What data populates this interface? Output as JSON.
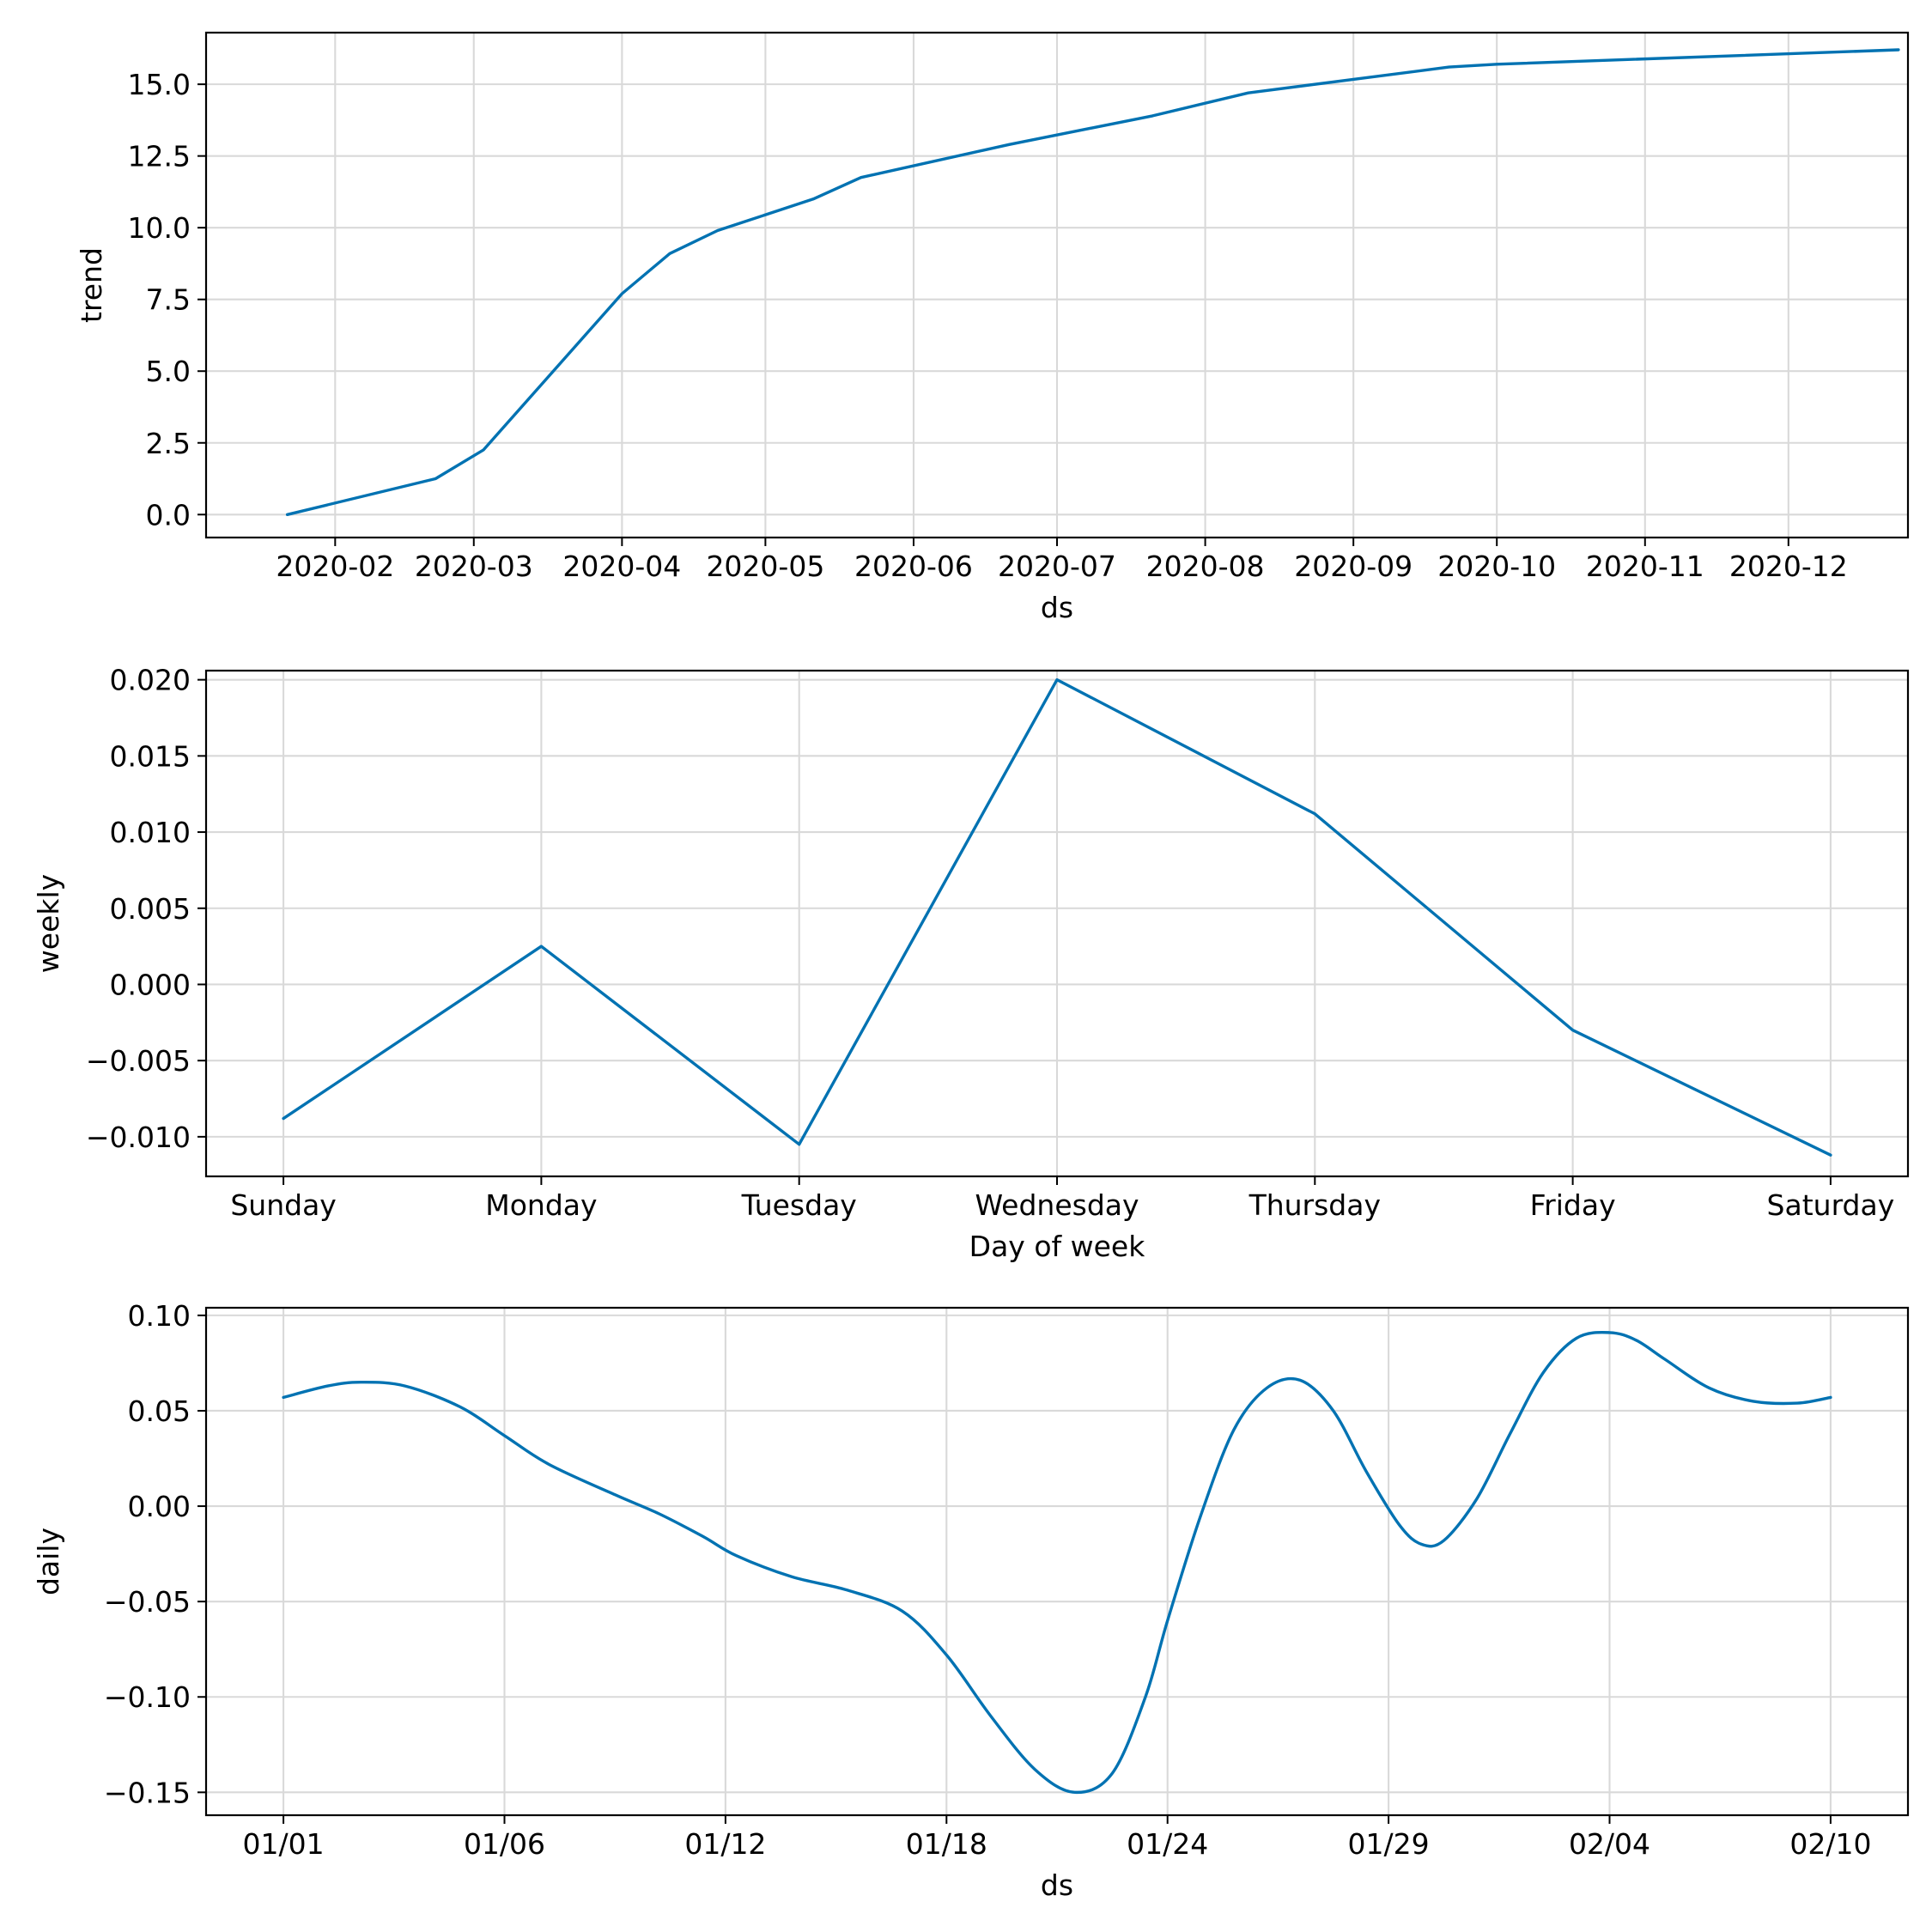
{
  "colors": {
    "series": "#0072b2",
    "grid": "#d9d9d9",
    "axis": "#000000"
  },
  "chart_data": [
    {
      "type": "line",
      "name": "trend",
      "xlabel": "ds",
      "ylabel": "trend",
      "x_type": "date",
      "xlim": [
        "2020-01-05",
        "2020-12-26"
      ],
      "ylim": [
        -0.8,
        16.8
      ],
      "x_ticks": [
        "2020-02-01",
        "2020-03-01",
        "2020-04-01",
        "2020-05-01",
        "2020-06-01",
        "2020-07-01",
        "2020-08-01",
        "2020-09-01",
        "2020-10-01",
        "2020-11-01",
        "2020-12-01"
      ],
      "x_tick_labels": [
        "2020-02",
        "2020-03",
        "2020-04",
        "2020-05",
        "2020-06",
        "2020-07",
        "2020-08",
        "2020-09",
        "2020-10",
        "2020-11",
        "2020-12"
      ],
      "y_ticks": [
        0,
        2.5,
        5,
        7.5,
        10,
        12.5,
        15
      ],
      "y_tick_labels": [
        "0.0",
        "2.5",
        "5.0",
        "7.5",
        "10.0",
        "12.5",
        "15.0"
      ],
      "grid": true,
      "series": [
        {
          "x": [
            "2020-01-22",
            "2020-02-22",
            "2020-03-03",
            "2020-04-01",
            "2020-04-11",
            "2020-04-21",
            "2020-05-11",
            "2020-05-21",
            "2020-06-21",
            "2020-07-21",
            "2020-08-10",
            "2020-09-21",
            "2020-10-01",
            "2020-12-24"
          ],
          "y": [
            0.0,
            1.25,
            2.25,
            7.7,
            9.1,
            9.9,
            11.0,
            11.75,
            12.9,
            13.9,
            14.7,
            15.6,
            15.7,
            16.2
          ]
        }
      ]
    },
    {
      "type": "line",
      "name": "weekly",
      "xlabel": "Day of week",
      "ylabel": "weekly",
      "categories": [
        "Sunday",
        "Monday",
        "Tuesday",
        "Wednesday",
        "Thursday",
        "Friday",
        "Saturday"
      ],
      "ylim": [
        -0.0126,
        0.0206
      ],
      "y_ticks": [
        -0.01,
        -0.005,
        0,
        0.005,
        0.01,
        0.015,
        0.02
      ],
      "y_tick_labels": [
        "−0.010",
        "−0.005",
        "0.000",
        "0.005",
        "0.010",
        "0.015",
        "0.020"
      ],
      "grid": true,
      "series": [
        {
          "values": [
            -0.0088,
            0.0025,
            -0.0105,
            0.02,
            0.0112,
            -0.003,
            -0.0112
          ]
        }
      ]
    },
    {
      "type": "line",
      "name": "daily",
      "xlabel": "ds",
      "ylabel": "daily",
      "xlim": [
        -0.35,
        7.35
      ],
      "ylim": [
        -0.162,
        0.104
      ],
      "x_ticks": [
        0,
        1,
        2,
        3,
        4,
        5,
        6,
        7
      ],
      "x_tick_labels": [
        "01/01",
        "01/06",
        "01/12",
        "01/18",
        "01/24",
        "01/29",
        "02/04",
        "02/10"
      ],
      "y_ticks": [
        -0.15,
        -0.1,
        -0.05,
        0,
        0.05,
        0.1
      ],
      "y_tick_labels": [
        "−0.15",
        "−0.10",
        "−0.05",
        "0.00",
        "0.05",
        "0.10"
      ],
      "grid": true,
      "series": [
        {
          "x": [
            0,
            0.2,
            0.35,
            0.55,
            0.8,
            1.0,
            1.2,
            1.5,
            1.7,
            1.9,
            2.05,
            2.3,
            2.55,
            2.8,
            3.0,
            3.2,
            3.4,
            3.58,
            3.75,
            3.9,
            4.0,
            4.15,
            4.3,
            4.45,
            4.6,
            4.75,
            4.9,
            5.05,
            5.15,
            5.25,
            5.4,
            5.55,
            5.7,
            5.85,
            6.0,
            6.12,
            6.25,
            6.45,
            6.65,
            6.85,
            7.0
          ],
          "y": [
            0.057,
            0.063,
            0.065,
            0.063,
            0.052,
            0.037,
            0.022,
            0.006,
            -0.004,
            -0.016,
            -0.026,
            -0.037,
            -0.044,
            -0.055,
            -0.078,
            -0.11,
            -0.138,
            -0.15,
            -0.14,
            -0.1,
            -0.06,
            -0.005,
            0.04,
            0.062,
            0.066,
            0.05,
            0.018,
            -0.01,
            -0.02,
            -0.018,
            0.004,
            0.038,
            0.07,
            0.088,
            0.091,
            0.087,
            0.077,
            0.062,
            0.055,
            0.054,
            0.057
          ]
        }
      ]
    }
  ]
}
